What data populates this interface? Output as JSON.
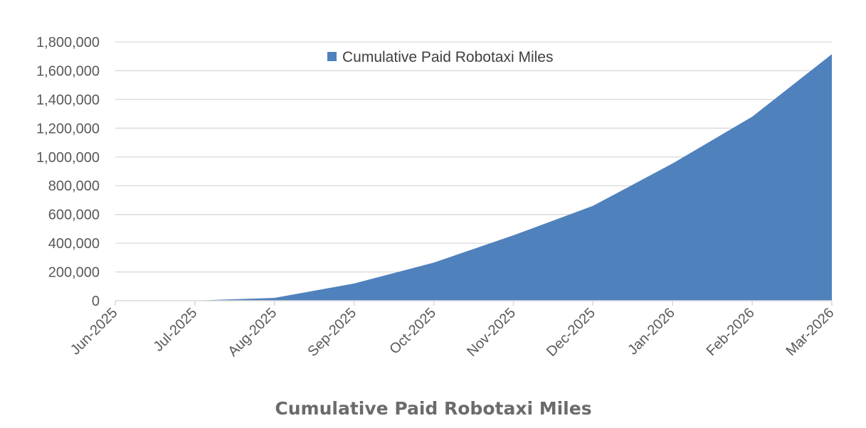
{
  "colors": {
    "area_fill": "#4f81bd",
    "gridline": "#d9d9d9",
    "axis_line": "#d9d9d9",
    "tick_text": "#595959",
    "title_text": "#6b6b6b"
  },
  "chart_data": {
    "type": "area",
    "title": "",
    "xlabel": "Cumulative Paid Robotaxi Miles",
    "ylabel": "",
    "categories": [
      "Jun-2025",
      "Jul-2025",
      "Aug-2025",
      "Sep-2025",
      "Oct-2025",
      "Nov-2025",
      "Dec-2025",
      "Jan-2026",
      "Feb-2026",
      "Mar-2026"
    ],
    "series": [
      {
        "name": "Cumulative Paid Robotaxi Miles",
        "values": [
          0,
          1000,
          20000,
          120000,
          265000,
          455000,
          660000,
          955000,
          1280000,
          1715000
        ]
      }
    ],
    "ylim": [
      0,
      1800000
    ],
    "y_ticks": [
      0,
      200000,
      400000,
      600000,
      800000,
      1000000,
      1200000,
      1400000,
      1600000,
      1800000
    ],
    "y_tick_labels": [
      "0",
      "200,000",
      "400,000",
      "600,000",
      "800,000",
      "1,000,000",
      "1,200,000",
      "1,400,000",
      "1,600,000",
      "1,800,000"
    ],
    "grid": true,
    "legend_position": "top-center"
  }
}
